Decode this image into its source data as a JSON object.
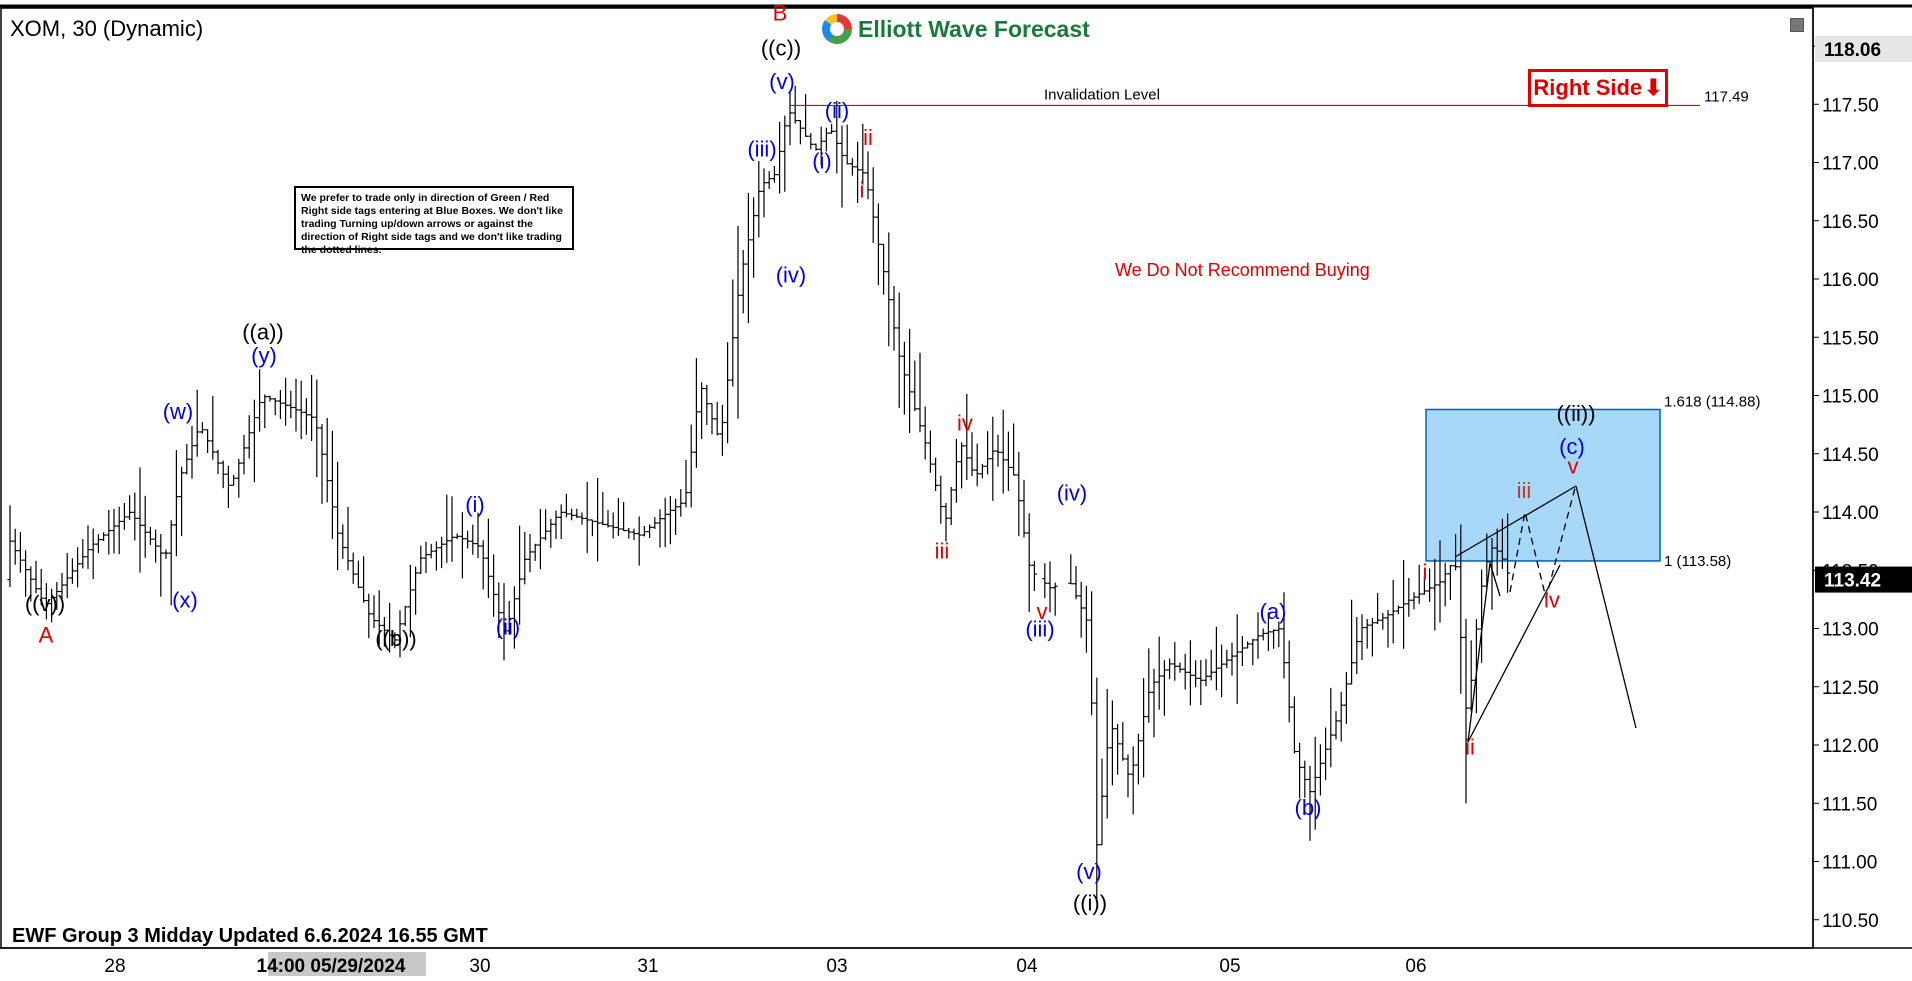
{
  "header": {
    "symbol_title": "XOM, 30 (Dynamic)",
    "logo_text": "Elliott Wave Forecast",
    "right_side_tag": "Right Side",
    "right_side_color": "#e00000"
  },
  "note_box": "We prefer to trade only in direction of Green / Red Right side tags entering at Blue Boxes. We don't like trading Turning up/down arrows or against the direction of Right side tags and we don't like trading the dotted lines.",
  "recommendation": "We Do Not Recommend Buying",
  "footer": "EWF Group 3 Midday Updated 6.6.2024 16.55 GMT",
  "chart_data": {
    "type": "bar",
    "ylim": [
      110.3,
      118.2
    ],
    "y_ticks": [
      "118.00",
      "117.50",
      "117.00",
      "116.50",
      "116.00",
      "115.50",
      "115.00",
      "114.50",
      "114.00",
      "113.50",
      "113.00",
      "112.50",
      "112.00",
      "111.50",
      "111.00",
      "110.50"
    ],
    "y_tick_values": [
      118.0,
      117.5,
      117.0,
      116.5,
      116.0,
      115.5,
      115.0,
      114.5,
      114.0,
      113.5,
      113.0,
      112.5,
      112.0,
      111.5,
      111.0,
      110.5
    ],
    "x_ticks": [
      "28",
      "14:00 05/29/2024",
      "30",
      "31",
      "03",
      "04",
      "05",
      "06"
    ],
    "price_top_label": "118.06",
    "price_current_label": "113.42",
    "price_current": 113.42,
    "invalidation": {
      "label": "Invalidation Level",
      "value": 117.49,
      "value_label": "117.49",
      "color": "#e00000"
    },
    "blue_box": {
      "upper": 114.88,
      "lower": 113.58,
      "upper_label": "1.618 (114.88)",
      "lower_label": "1 (113.58)",
      "color": "#a8d8f8"
    },
    "wave_labels": [
      {
        "text": "((v))",
        "color": "#000000",
        "price": 113.15
      },
      {
        "text": "A",
        "color": "#e00000",
        "price": 112.88
      },
      {
        "text": "(w)",
        "color": "#0000dd",
        "price": 114.8
      },
      {
        "text": "(x)",
        "color": "#0000dd",
        "price": 113.18
      },
      {
        "text": "((a))",
        "color": "#000000",
        "price": 115.48
      },
      {
        "text": "(y)",
        "color": "#0000dd",
        "price": 115.28
      },
      {
        "text": "((b))",
        "color": "#000000",
        "price": 112.85
      },
      {
        "text": "(i)",
        "color": "#0000dd",
        "price": 114.0
      },
      {
        "text": "(ii)",
        "color": "#0000dd",
        "price": 112.95
      },
      {
        "text": "B",
        "color": "#e00000",
        "price": 118.22
      },
      {
        "text": "((c))",
        "color": "#000000",
        "price": 117.92
      },
      {
        "text": "(v)",
        "color": "#0000dd",
        "price": 117.63
      },
      {
        "text": "(iii)",
        "color": "#0000dd",
        "price": 117.05
      },
      {
        "text": "(iv)",
        "color": "#0000dd",
        "price": 115.97
      },
      {
        "text": "(ii)",
        "color": "#0000dd",
        "price": 117.38
      },
      {
        "text": "(i)",
        "color": "#0000dd",
        "price": 116.95
      },
      {
        "text": "ii",
        "color": "#e00000",
        "price": 117.15
      },
      {
        "text": "i",
        "color": "#e00000",
        "price": 116.7
      },
      {
        "text": "iv",
        "color": "#e00000",
        "price": 114.7
      },
      {
        "text": "iii",
        "color": "#e00000",
        "price": 113.6
      },
      {
        "text": "(iv)",
        "color": "#0000dd",
        "price": 114.1
      },
      {
        "text": "v",
        "color": "#e00000",
        "price": 113.08
      },
      {
        "text": "(iii)",
        "color": "#0000dd",
        "price": 112.93
      },
      {
        "text": "(v)",
        "color": "#0000dd",
        "price": 110.85
      },
      {
        "text": "((i))",
        "color": "#000000",
        "price": 110.58
      },
      {
        "text": "(a)",
        "color": "#0000dd",
        "price": 113.08
      },
      {
        "text": "(b)",
        "color": "#0000dd",
        "price": 111.4
      },
      {
        "text": "i",
        "color": "#e00000",
        "price": 113.42
      },
      {
        "text": "ii",
        "color": "#e00000",
        "price": 111.92
      },
      {
        "text": "iii",
        "color": "#c0392b",
        "price": 114.12
      },
      {
        "text": "iv",
        "color": "#e00000",
        "price": 113.18
      },
      {
        "text": "v",
        "color": "#e00000",
        "price": 114.33
      },
      {
        "text": "(c)",
        "color": "#0000dd",
        "price": 114.5
      },
      {
        "text": "((ii))",
        "color": "#000000",
        "price": 114.78
      }
    ]
  }
}
